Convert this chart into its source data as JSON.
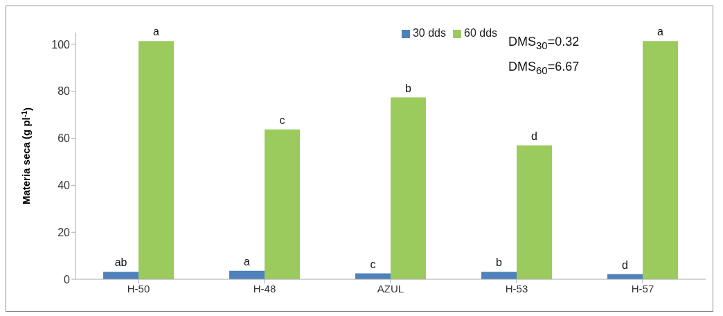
{
  "chart_data": {
    "type": "bar",
    "ylabel": "Materia seca (g pl$^{-1}$)",
    "categories": [
      "H-50",
      "H-48",
      "AZUL",
      "H-53",
      "H-57"
    ],
    "series": [
      {
        "name": "30 dds",
        "color": "#4f81bd",
        "values": [
          3.2,
          3.6,
          2.5,
          3.2,
          2.2
        ],
        "value_labels": [
          "ab",
          "a",
          "c",
          "b",
          "d"
        ]
      },
      {
        "name": "60 dds",
        "color": "#9bcb5c",
        "values": [
          101.4,
          63.8,
          77.4,
          57.0,
          101.4
        ],
        "value_labels": [
          "a",
          "c",
          "b",
          "d",
          "a"
        ]
      }
    ],
    "ylim": [
      0,
      105
    ],
    "yticks": [
      0,
      20,
      40,
      60,
      80,
      100
    ],
    "grid": false,
    "legend": "top",
    "annotations": [
      "DMS$_{30}$=0.32",
      "DMS$_{60}$=6.67"
    ]
  }
}
